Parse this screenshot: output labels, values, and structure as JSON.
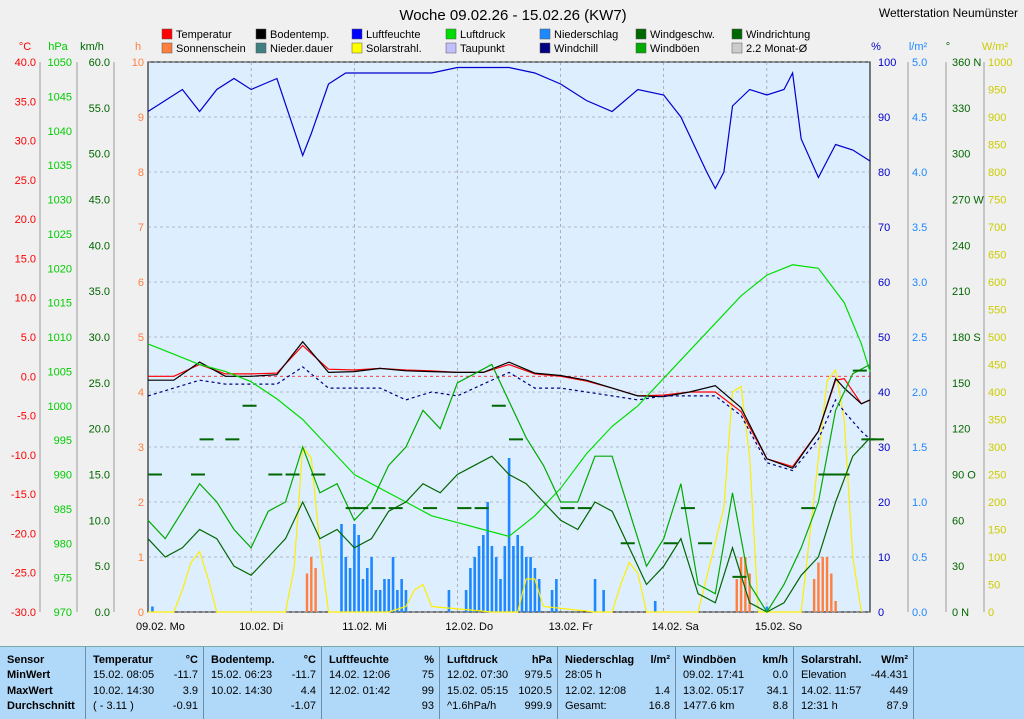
{
  "title": "Woche 09.02.26 - 15.02.26 (KW7)",
  "station": "Wetterstation Neumünster",
  "colors": {
    "bg": "#ddeeff",
    "grid": "#888888",
    "temperature": "#ff0000",
    "ground_temp": "#000000",
    "humidity": "#0000cc",
    "pressure": "#00dd00",
    "precipitation": "#1e88ff",
    "wind": "#006600",
    "gust": "#00aa00",
    "solar": "#ffee00",
    "sunshine": "#ff7f3f",
    "dewpoint": "#000080",
    "windchill": "#000080"
  },
  "legend": [
    {
      "label": "Temperatur",
      "color": "#ff0000"
    },
    {
      "label": "Bodentemp.",
      "color": "#000000"
    },
    {
      "label": "Luftfeuchte",
      "color": "#0000ff"
    },
    {
      "label": "Luftdruck",
      "color": "#00dd00"
    },
    {
      "label": "Niederschlag",
      "color": "#1e88ff"
    },
    {
      "label": "Windgeschw.",
      "color": "#006600"
    },
    {
      "label": "Windrichtung",
      "color": "#006600"
    },
    {
      "label": "Sonnenschein",
      "color": "#ff7f3f"
    },
    {
      "label": "Nieder.dauer",
      "color": "#408080"
    },
    {
      "label": "Solarstrahl.",
      "color": "#ffff00"
    },
    {
      "label": "Taupunkt",
      "color": "#c0c0ff"
    },
    {
      "label": "Windchill",
      "color": "#000080"
    },
    {
      "label": "Windböen",
      "color": "#00aa00"
    },
    {
      "label": "2.2 Monat-Ø",
      "color": "#cccccc"
    }
  ],
  "axes": {
    "temp": {
      "unit": "°C",
      "ticks": [
        "40.0",
        "35.0",
        "30.0",
        "25.0",
        "20.0",
        "15.0",
        "10.0",
        "5.0",
        "0.0",
        "-5.0",
        "-10.0",
        "-15.0",
        "-20.0",
        "-25.0",
        "-30.0"
      ],
      "range": [
        -30,
        40
      ],
      "color": "#ff0000"
    },
    "pressure": {
      "unit": "hPa",
      "ticks": [
        "1050",
        "1045",
        "1040",
        "1035",
        "1030",
        "1025",
        "1020",
        "1015",
        "1010",
        "1005",
        "1000",
        "995",
        "990",
        "985",
        "980",
        "975",
        "970"
      ],
      "range": [
        970,
        1050
      ],
      "color": "#00cc00"
    },
    "wind": {
      "unit": "km/h",
      "ticks": [
        "60.0",
        "55.0",
        "50.0",
        "45.0",
        "40.0",
        "35.0",
        "30.0",
        "25.0",
        "20.0",
        "15.0",
        "10.0",
        "5.0",
        "0.0"
      ],
      "range": [
        0,
        60
      ],
      "color": "#006600"
    },
    "hours": {
      "unit": "h",
      "ticks": [
        "10",
        "9",
        "8",
        "7",
        "6",
        "5",
        "4",
        "3",
        "2",
        "1",
        "0"
      ],
      "range": [
        0,
        10
      ],
      "color": "#ff7f3f"
    },
    "humidity": {
      "unit": "%",
      "ticks": [
        "100",
        "90",
        "80",
        "70",
        "60",
        "50",
        "40",
        "30",
        "20",
        "10",
        "0"
      ],
      "range": [
        0,
        100
      ],
      "color": "#0000cc"
    },
    "precip": {
      "unit": "l/m²",
      "ticks": [
        "5.0",
        "4.5",
        "4.0",
        "3.5",
        "3.0",
        "2.5",
        "2.0",
        "1.5",
        "1.0",
        "0.5",
        "0.0"
      ],
      "range": [
        0,
        5
      ],
      "color": "#1e88ff"
    },
    "direction": {
      "unit": "°",
      "ticks": [
        "360 N",
        "330",
        "300",
        "270 W",
        "240",
        "210",
        "180 S",
        "150",
        "120",
        "90 O",
        "60",
        "30",
        "0 N"
      ],
      "range": [
        0,
        360
      ],
      "color": "#006600"
    },
    "solar": {
      "unit": "W/m²",
      "ticks": [
        "1000",
        "950",
        "900",
        "850",
        "800",
        "750",
        "700",
        "650",
        "600",
        "550",
        "500",
        "450",
        "400",
        "350",
        "300",
        "250",
        "200",
        "150",
        "100",
        "50",
        "0"
      ],
      "range": [
        0,
        1000
      ],
      "color": "#cccc00"
    }
  },
  "days": [
    "09.02.  Mo",
    "10.02.  Di",
    "11.02.  Mi",
    "12.02.  Do",
    "13.02.  Fr",
    "14.02.  Sa",
    "15.02.  So"
  ],
  "chart_data": {
    "type": "line",
    "x_unit": "hours since 09.02. 00:00",
    "series": [
      {
        "name": "Temperatur",
        "axis": "temp",
        "x": [
          0,
          6,
          12,
          18,
          24,
          30,
          36,
          42,
          48,
          54,
          60,
          66,
          72,
          78,
          84,
          90,
          96,
          102,
          108,
          114,
          120,
          126,
          132,
          138,
          144,
          150,
          156,
          160,
          162,
          166,
          168
        ],
        "y": [
          0,
          0,
          1.5,
          0.3,
          0.3,
          0.4,
          3.9,
          0.9,
          0.8,
          1.0,
          0.8,
          0.7,
          0.5,
          0.5,
          1.5,
          0.3,
          0,
          -0.6,
          -1.5,
          -2.5,
          -2.4,
          -2.0,
          -2.0,
          -4.5,
          -10.5,
          -11.5,
          -7,
          -0.5,
          -0.3,
          -3.5,
          -3
        ]
      },
      {
        "name": "Bodentemp.",
        "axis": "temp",
        "x": [
          0,
          6,
          12,
          18,
          24,
          30,
          36,
          42,
          48,
          54,
          60,
          66,
          72,
          78,
          84,
          90,
          96,
          102,
          108,
          114,
          120,
          126,
          132,
          138,
          144,
          150,
          156,
          160,
          162,
          166,
          168
        ],
        "y": [
          -0.5,
          -0.5,
          1.8,
          0,
          0,
          0.2,
          4.4,
          0.5,
          0.6,
          1.0,
          0.7,
          0.6,
          0.5,
          0.5,
          1.8,
          0.4,
          0.1,
          -0.5,
          -1.5,
          -2.5,
          -2.6,
          -2.0,
          -1.2,
          -4,
          -10.5,
          -11.7,
          -7,
          -0.3,
          -1.5,
          -3.5,
          -3
        ]
      },
      {
        "name": "Windchill",
        "axis": "temp",
        "x": [
          0,
          6,
          12,
          18,
          24,
          30,
          36,
          42,
          48,
          54,
          60,
          66,
          72,
          78,
          84,
          90,
          96,
          102,
          108,
          114,
          120,
          126,
          132,
          138,
          144,
          150,
          156,
          160,
          162,
          166,
          168
        ],
        "y": [
          -2.5,
          -1.5,
          -0.5,
          -1,
          -1,
          -1,
          1.2,
          -1.5,
          -1.5,
          -1.5,
          -3,
          -2,
          -2.5,
          -1,
          0.5,
          -1.5,
          -1.5,
          -2,
          -2.5,
          -3,
          -2.5,
          -2.5,
          -2.5,
          -5,
          -11,
          -12,
          -8,
          -3,
          -4.5,
          -7,
          -8
        ]
      },
      {
        "name": "Luftfeuchte",
        "axis": "humidity",
        "x": [
          0,
          4,
          8,
          12,
          16,
          20,
          24,
          30,
          36,
          38,
          42,
          46,
          50,
          56,
          60,
          66,
          72,
          78,
          84,
          90,
          96,
          102,
          108,
          114,
          120,
          124,
          130,
          132,
          134,
          136,
          140,
          144,
          148,
          150,
          152,
          156,
          158,
          160,
          164,
          168
        ],
        "y": [
          91,
          93,
          95,
          91,
          95,
          97,
          95,
          97,
          83,
          87,
          96,
          98,
          98,
          98,
          98,
          98,
          99,
          99,
          99,
          98,
          96,
          93,
          91,
          95,
          94,
          90,
          80,
          77,
          80,
          92,
          95,
          94,
          95,
          98,
          86,
          79,
          82,
          85,
          84,
          82
        ]
      },
      {
        "name": "Luftdruck",
        "axis": "pressure",
        "x": [
          0,
          6,
          12,
          18,
          24,
          30,
          36,
          42,
          48,
          54,
          60,
          66,
          72,
          78,
          84,
          90,
          96,
          102,
          108,
          114,
          120,
          126,
          132,
          138,
          144,
          150,
          156,
          162,
          166,
          168
        ],
        "y": [
          1009,
          1007.5,
          1006,
          1005,
          1003.5,
          1001,
          998,
          994,
          990,
          988,
          986,
          984,
          983,
          982,
          981,
          984,
          988,
          993,
          997,
          1000,
          1004,
          1008,
          1012,
          1016,
          1019,
          1020.5,
          1020,
          1015,
          1009,
          1005
        ]
      },
      {
        "name": "Windgeschw.",
        "axis": "wind",
        "x": [
          0,
          4,
          8,
          12,
          16,
          20,
          24,
          28,
          32,
          36,
          40,
          44,
          48,
          52,
          56,
          60,
          64,
          68,
          72,
          76,
          80,
          84,
          88,
          92,
          96,
          100,
          104,
          108,
          112,
          116,
          120,
          124,
          128,
          132,
          136,
          140,
          144,
          148,
          152,
          156,
          160,
          164,
          168
        ],
        "y": [
          8,
          6,
          7,
          9,
          8,
          5,
          4,
          6,
          8,
          12,
          8,
          9,
          7,
          8,
          11,
          12,
          14,
          13,
          15,
          16,
          17,
          15,
          14,
          12,
          10,
          9,
          12,
          11,
          7,
          3,
          5,
          8,
          2,
          1,
          7,
          1,
          0,
          1,
          4,
          6,
          12,
          17,
          19
        ]
      },
      {
        "name": "Windböen",
        "axis": "wind",
        "x": [
          0,
          4,
          8,
          12,
          16,
          20,
          24,
          28,
          32,
          36,
          40,
          44,
          48,
          52,
          56,
          60,
          64,
          68,
          72,
          76,
          80,
          84,
          88,
          92,
          96,
          100,
          104,
          108,
          112,
          116,
          120,
          124,
          128,
          132,
          136,
          140,
          144,
          148,
          152,
          156,
          160,
          164,
          168
        ],
        "y": [
          10,
          8,
          11,
          14,
          12,
          9,
          7,
          11,
          12,
          18,
          13,
          14,
          10,
          12,
          16,
          18,
          22,
          20,
          25,
          26,
          27,
          23,
          19,
          16,
          12,
          12,
          17,
          17,
          11,
          5,
          8,
          14,
          3,
          2,
          13,
          3,
          0,
          3,
          7,
          12,
          22,
          26,
          27
        ]
      }
    ],
    "precipitation": {
      "axis": "precip",
      "x": [
        1,
        45,
        46,
        47,
        48,
        49,
        50,
        51,
        52,
        53,
        54,
        55,
        56,
        57,
        58,
        59,
        60,
        70,
        74,
        75,
        76,
        77,
        78,
        79,
        80,
        81,
        82,
        83,
        84,
        85,
        86,
        87,
        88,
        89,
        90,
        91,
        94,
        95,
        104,
        106,
        118,
        144
      ],
      "y": [
        0.05,
        0.8,
        0.5,
        0.4,
        0.8,
        0.7,
        0.3,
        0.4,
        0.5,
        0.2,
        0.2,
        0.3,
        0.3,
        0.5,
        0.2,
        0.3,
        0.2,
        0.2,
        0.2,
        0.4,
        0.5,
        0.6,
        0.7,
        1.0,
        0.6,
        0.5,
        0.3,
        0.6,
        1.4,
        0.6,
        0.7,
        0.6,
        0.5,
        0.5,
        0.4,
        0.3,
        0.2,
        0.3,
        0.3,
        0.2,
        0.1,
        0.05
      ]
    },
    "sunshine": {
      "axis": "hours",
      "x": [
        37,
        38,
        39,
        137,
        138,
        139,
        140,
        155,
        156,
        157,
        158,
        159,
        160
      ],
      "y": [
        0.7,
        1.0,
        0.8,
        0.6,
        1.0,
        1.0,
        0.7,
        0.6,
        0.9,
        1.0,
        1.0,
        0.7,
        0.2
      ]
    },
    "solar": {
      "axis": "solar",
      "x": [
        0,
        6,
        8,
        10,
        12,
        14,
        16,
        32,
        34,
        36,
        38,
        40,
        42,
        56,
        60,
        62,
        64,
        66,
        80,
        86,
        88,
        90,
        92,
        104,
        108,
        110,
        112,
        114,
        116,
        128,
        134,
        136,
        138,
        140,
        142,
        152,
        156,
        158,
        160,
        162,
        164,
        166
      ],
      "y": [
        0,
        0,
        40,
        90,
        110,
        60,
        0,
        0,
        80,
        300,
        280,
        120,
        0,
        0,
        10,
        40,
        50,
        10,
        0,
        0,
        60,
        60,
        10,
        0,
        0,
        50,
        90,
        70,
        0,
        0,
        190,
        400,
        410,
        280,
        0,
        0,
        280,
        420,
        440,
        350,
        100,
        0
      ]
    },
    "wind_direction": {
      "axis": "direction",
      "x": [
        0,
        10,
        12,
        18,
        22,
        28,
        32,
        38,
        46,
        48,
        52,
        56,
        64,
        72,
        76,
        80,
        84,
        96,
        100,
        110,
        120,
        124,
        128,
        136,
        152,
        156,
        158,
        160,
        164,
        166,
        168
      ],
      "y": [
        90,
        90,
        113,
        113,
        135,
        90,
        90,
        90,
        68,
        68,
        68,
        68,
        68,
        68,
        68,
        135,
        113,
        68,
        68,
        45,
        45,
        68,
        45,
        23,
        68,
        90,
        90,
        90,
        158,
        113,
        113
      ]
    },
    "notes": {
      "extremes": "MinWert / MaxWert / Durchschnitt"
    }
  },
  "stats": {
    "row_labels": [
      "Sensor",
      "MinWert",
      "MaxWert",
      "Durchschnitt"
    ],
    "columns": [
      {
        "name": "Temperatur",
        "unit": "°C",
        "rows": [
          [
            "15.02.  08:05",
            "-11.7"
          ],
          [
            "10.02.  14:30",
            "3.9"
          ],
          [
            "( - 3.11 )",
            "-0.91"
          ]
        ]
      },
      {
        "name": "Bodentemp.",
        "unit": "°C",
        "rows": [
          [
            "15.02.  06:23",
            "-11.7"
          ],
          [
            "10.02.  14:30",
            "4.4"
          ],
          [
            "",
            "-1.07"
          ]
        ]
      },
      {
        "name": "Luftfeuchte",
        "unit": "%",
        "rows": [
          [
            "14.02.  12:06",
            "75"
          ],
          [
            "12.02.  01:42",
            "99"
          ],
          [
            "",
            "93"
          ]
        ]
      },
      {
        "name": "Luftdruck",
        "unit": "hPa",
        "rows": [
          [
            "12.02.  07:30",
            "979.5"
          ],
          [
            "15.02.  05:15",
            "1020.5"
          ],
          [
            "^1.6hPa/h",
            "999.9"
          ]
        ]
      },
      {
        "name": "Niederschlag",
        "unit": "l/m²",
        "rows": [
          [
            "28:05 h",
            ""
          ],
          [
            "12.02.  12:08",
            "1.4"
          ],
          [
            "Gesamt:",
            "16.8"
          ]
        ]
      },
      {
        "name": "Windböen",
        "unit": "km/h",
        "rows": [
          [
            "09.02.  17:41",
            "0.0"
          ],
          [
            "13.02.  05:17",
            "34.1"
          ],
          [
            "1477.6 km",
            "8.8"
          ]
        ]
      },
      {
        "name": "Solarstrahl.",
        "unit": "W/m²",
        "rows": [
          [
            "Elevation",
            "-44.431"
          ],
          [
            "14.02.  11:57",
            "449"
          ],
          [
            "12:31 h",
            "87.9"
          ]
        ]
      }
    ]
  }
}
